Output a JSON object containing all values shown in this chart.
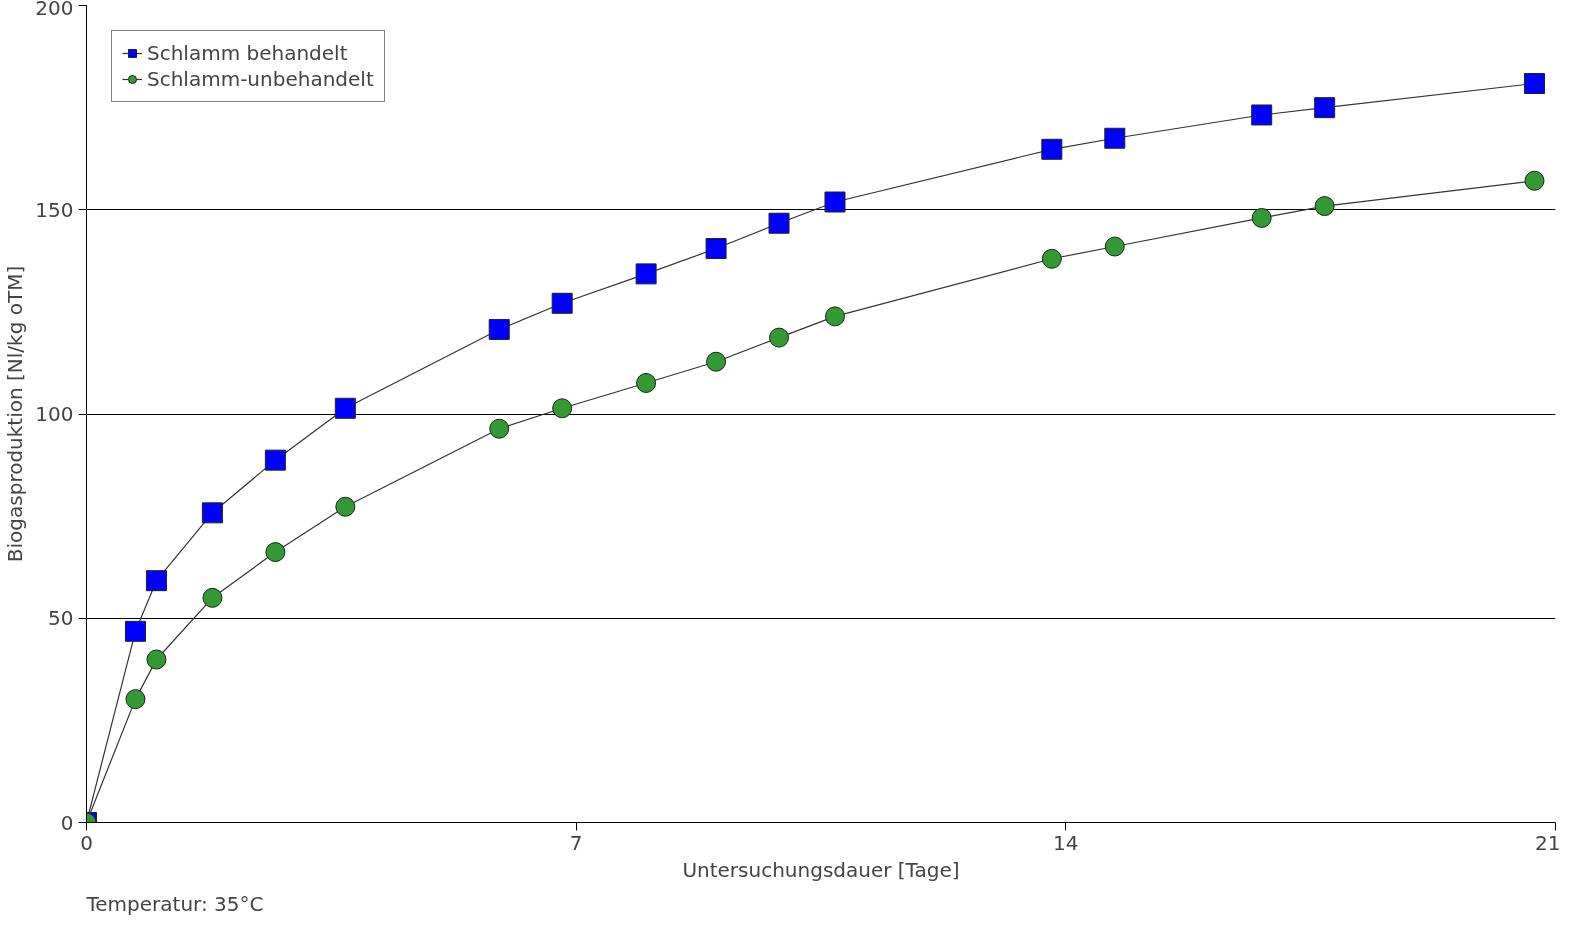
{
  "chart_data": {
    "type": "line",
    "xlabel": "Untersuchungsdauer [Tage]",
    "ylabel": "Biogasproduktion [Nl/kg oTM]",
    "annotations": [
      "Temperatur: 35°C"
    ],
    "xlim": [
      0,
      21
    ],
    "xticks": [
      0,
      7,
      14,
      21
    ],
    "ylim": [
      0,
      200
    ],
    "yticks": [
      0,
      50,
      100,
      150,
      200
    ],
    "grid": "y",
    "legend": "top left",
    "series": [
      {
        "name": "Schlamm behandelt",
        "color": "#0000ff",
        "marker": "square",
        "x": [
          0,
          0.7,
          1.0,
          1.8,
          2.7,
          3.7,
          5.9,
          6.8,
          8.0,
          9.0,
          9.9,
          10.7,
          13.8,
          14.7,
          16.8,
          17.7,
          20.7
        ],
        "values": [
          0,
          46.8,
          59.2,
          75.8,
          88.7,
          101.4,
          120.7,
          127.1,
          134.3,
          140.5,
          146.7,
          151.9,
          164.8,
          167.5,
          173.2,
          175.0,
          180.9
        ]
      },
      {
        "name": "Schlamm-unbehandelt",
        "color": "#339933",
        "marker": "circle",
        "x": [
          0,
          0.7,
          1.0,
          1.8,
          2.7,
          3.7,
          5.9,
          6.8,
          8.0,
          9.0,
          9.9,
          10.7,
          13.8,
          14.7,
          16.8,
          17.7,
          20.7
        ],
        "values": [
          0,
          30.2,
          39.9,
          55.0,
          66.2,
          77.3,
          96.4,
          101.4,
          107.6,
          112.8,
          118.7,
          123.9,
          138.0,
          141.0,
          148.0,
          150.9,
          157.1
        ]
      }
    ]
  }
}
